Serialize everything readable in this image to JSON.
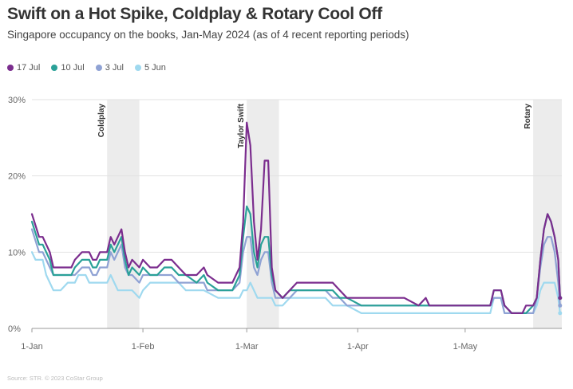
{
  "title": "Swift on a Hot Spike, Coldplay & Rotary Cool Off",
  "subtitle": "Singapore occupancy on the books, Jan-May 2024 (as of 4 recent reporting periods)",
  "source": "Source: STR. © 2023 CoStar Group",
  "chart_data": {
    "type": "line",
    "title": "Swift on a Hot Spike, Coldplay & Rotary Cool Off",
    "xlabel": "",
    "ylabel": "",
    "x_unit": "day of year 2024 (0 = 1-Jan)",
    "xlim": [
      0,
      148
    ],
    "ylim": [
      0,
      30
    ],
    "grid": "horizontal",
    "legend_position": "top-left",
    "y_ticks": [
      {
        "value": 0,
        "label": "0%"
      },
      {
        "value": 10,
        "label": "10%"
      },
      {
        "value": 20,
        "label": "20%"
      },
      {
        "value": 30,
        "label": "30%"
      }
    ],
    "x_ticks": [
      {
        "value": 0,
        "label": "1-Jan"
      },
      {
        "value": 31,
        "label": "1-Feb"
      },
      {
        "value": 60,
        "label": "1-Mar"
      },
      {
        "value": 91,
        "label": "1-Apr"
      },
      {
        "value": 121,
        "label": "1-May"
      }
    ],
    "events": [
      {
        "label": "Coldplay",
        "start": 21,
        "end": 30
      },
      {
        "label": "Taylor Swift",
        "start": 60,
        "end": 69
      },
      {
        "label": "Rotary",
        "start": 140,
        "end": 148
      }
    ],
    "series": [
      {
        "name": "17 Jul",
        "color": "#7b2d8e",
        "points": [
          [
            0,
            15
          ],
          [
            2,
            12
          ],
          [
            3,
            12
          ],
          [
            5,
            10
          ],
          [
            6,
            8
          ],
          [
            8,
            8
          ],
          [
            11,
            8
          ],
          [
            12,
            9
          ],
          [
            14,
            10
          ],
          [
            16,
            10
          ],
          [
            17,
            9
          ],
          [
            18,
            9
          ],
          [
            19,
            10
          ],
          [
            21,
            10
          ],
          [
            22,
            12
          ],
          [
            23,
            11
          ],
          [
            24,
            12
          ],
          [
            25,
            13
          ],
          [
            26,
            10
          ],
          [
            27,
            8
          ],
          [
            28,
            9
          ],
          [
            30,
            8
          ],
          [
            31,
            9
          ],
          [
            33,
            8
          ],
          [
            35,
            8
          ],
          [
            37,
            9
          ],
          [
            39,
            9
          ],
          [
            41,
            8
          ],
          [
            43,
            7
          ],
          [
            46,
            7
          ],
          [
            48,
            8
          ],
          [
            49,
            7
          ],
          [
            52,
            6
          ],
          [
            56,
            6
          ],
          [
            58,
            8
          ],
          [
            59,
            14
          ],
          [
            60,
            27
          ],
          [
            61,
            24
          ],
          [
            62,
            14
          ],
          [
            63,
            9
          ],
          [
            64,
            13
          ],
          [
            65,
            22
          ],
          [
            66,
            22
          ],
          [
            67,
            8
          ],
          [
            68,
            5
          ],
          [
            70,
            4
          ],
          [
            72,
            5
          ],
          [
            74,
            6
          ],
          [
            76,
            6
          ],
          [
            80,
            6
          ],
          [
            82,
            6
          ],
          [
            84,
            6
          ],
          [
            86,
            5
          ],
          [
            88,
            4
          ],
          [
            92,
            4
          ],
          [
            97,
            4
          ],
          [
            104,
            4
          ],
          [
            108,
            3
          ],
          [
            110,
            4
          ],
          [
            111,
            3
          ],
          [
            118,
            3
          ],
          [
            125,
            3
          ],
          [
            128,
            3
          ],
          [
            129,
            5
          ],
          [
            131,
            5
          ],
          [
            132,
            3
          ],
          [
            134,
            2
          ],
          [
            137,
            2
          ],
          [
            138,
            3
          ],
          [
            140,
            3
          ],
          [
            141,
            4
          ],
          [
            142,
            9
          ],
          [
            143,
            13
          ],
          [
            144,
            15
          ],
          [
            145,
            14
          ],
          [
            146,
            12
          ],
          [
            147,
            9
          ],
          [
            147.5,
            4
          ]
        ]
      },
      {
        "name": "10 Jul",
        "color": "#2aa198",
        "points": [
          [
            0,
            14
          ],
          [
            2,
            11
          ],
          [
            3,
            11
          ],
          [
            5,
            9
          ],
          [
            6,
            7
          ],
          [
            8,
            7
          ],
          [
            11,
            7
          ],
          [
            12,
            8
          ],
          [
            14,
            9
          ],
          [
            16,
            9
          ],
          [
            17,
            8
          ],
          [
            18,
            8
          ],
          [
            19,
            9
          ],
          [
            21,
            9
          ],
          [
            22,
            11
          ],
          [
            23,
            10
          ],
          [
            24,
            11
          ],
          [
            25,
            12
          ],
          [
            26,
            9
          ],
          [
            27,
            7
          ],
          [
            28,
            8
          ],
          [
            30,
            7
          ],
          [
            31,
            8
          ],
          [
            33,
            7
          ],
          [
            35,
            7
          ],
          [
            37,
            8
          ],
          [
            39,
            8
          ],
          [
            41,
            7
          ],
          [
            43,
            7
          ],
          [
            46,
            6
          ],
          [
            48,
            7
          ],
          [
            49,
            6
          ],
          [
            52,
            5
          ],
          [
            56,
            5
          ],
          [
            58,
            7
          ],
          [
            59,
            12
          ],
          [
            60,
            16
          ],
          [
            61,
            15
          ],
          [
            62,
            10
          ],
          [
            63,
            8
          ],
          [
            64,
            11
          ],
          [
            65,
            12
          ],
          [
            66,
            12
          ],
          [
            67,
            7
          ],
          [
            68,
            5
          ],
          [
            70,
            4
          ],
          [
            72,
            5
          ],
          [
            74,
            5
          ],
          [
            76,
            5
          ],
          [
            80,
            5
          ],
          [
            82,
            5
          ],
          [
            84,
            5
          ],
          [
            86,
            4
          ],
          [
            88,
            4
          ],
          [
            92,
            3
          ],
          [
            97,
            3
          ],
          [
            104,
            3
          ],
          [
            108,
            3
          ],
          [
            110,
            3
          ],
          [
            118,
            3
          ],
          [
            125,
            3
          ],
          [
            128,
            3
          ],
          [
            129,
            5
          ],
          [
            131,
            5
          ],
          [
            132,
            3
          ],
          [
            134,
            2
          ],
          [
            137,
            2
          ],
          [
            138,
            2
          ],
          [
            140,
            3
          ],
          [
            141,
            4
          ],
          [
            142,
            9
          ],
          [
            143,
            13
          ],
          [
            144,
            15
          ],
          [
            145,
            14
          ],
          [
            146,
            12
          ],
          [
            147,
            9
          ],
          [
            147.5,
            4
          ]
        ]
      },
      {
        "name": "3 Jul",
        "color": "#8fa2d4",
        "points": [
          [
            0,
            13
          ],
          [
            2,
            10
          ],
          [
            3,
            10
          ],
          [
            5,
            8
          ],
          [
            6,
            7
          ],
          [
            8,
            7
          ],
          [
            11,
            7
          ],
          [
            12,
            7
          ],
          [
            14,
            8
          ],
          [
            16,
            8
          ],
          [
            17,
            7
          ],
          [
            18,
            7
          ],
          [
            19,
            8
          ],
          [
            21,
            8
          ],
          [
            22,
            10
          ],
          [
            23,
            9
          ],
          [
            24,
            10
          ],
          [
            25,
            11
          ],
          [
            26,
            8
          ],
          [
            27,
            7
          ],
          [
            28,
            7
          ],
          [
            30,
            6
          ],
          [
            31,
            7
          ],
          [
            33,
            7
          ],
          [
            35,
            7
          ],
          [
            37,
            7
          ],
          [
            39,
            7
          ],
          [
            41,
            6
          ],
          [
            43,
            6
          ],
          [
            46,
            6
          ],
          [
            48,
            6
          ],
          [
            49,
            5
          ],
          [
            52,
            5
          ],
          [
            56,
            5
          ],
          [
            58,
            6
          ],
          [
            59,
            10
          ],
          [
            60,
            12
          ],
          [
            61,
            12
          ],
          [
            62,
            8
          ],
          [
            63,
            7
          ],
          [
            64,
            9
          ],
          [
            65,
            10
          ],
          [
            66,
            10
          ],
          [
            67,
            6
          ],
          [
            68,
            4
          ],
          [
            70,
            4
          ],
          [
            72,
            4
          ],
          [
            74,
            5
          ],
          [
            76,
            5
          ],
          [
            80,
            5
          ],
          [
            82,
            5
          ],
          [
            84,
            4
          ],
          [
            86,
            4
          ],
          [
            88,
            3
          ],
          [
            92,
            3
          ],
          [
            97,
            3
          ],
          [
            104,
            3
          ],
          [
            108,
            3
          ],
          [
            110,
            3
          ],
          [
            118,
            3
          ],
          [
            125,
            3
          ],
          [
            128,
            3
          ],
          [
            129,
            4
          ],
          [
            131,
            4
          ],
          [
            132,
            2
          ],
          [
            134,
            2
          ],
          [
            137,
            2
          ],
          [
            138,
            2
          ],
          [
            140,
            2
          ],
          [
            141,
            4
          ],
          [
            142,
            8
          ],
          [
            143,
            11
          ],
          [
            144,
            12
          ],
          [
            145,
            12
          ],
          [
            146,
            10
          ],
          [
            147,
            6
          ],
          [
            147.5,
            3
          ]
        ]
      },
      {
        "name": "5 Jun",
        "color": "#9fd9ef",
        "points": [
          [
            0,
            10
          ],
          [
            1,
            9
          ],
          [
            2,
            9
          ],
          [
            3,
            9
          ],
          [
            4,
            7
          ],
          [
            6,
            5
          ],
          [
            8,
            5
          ],
          [
            10,
            6
          ],
          [
            12,
            6
          ],
          [
            13,
            7
          ],
          [
            15,
            7
          ],
          [
            16,
            6
          ],
          [
            17,
            6
          ],
          [
            19,
            6
          ],
          [
            21,
            6
          ],
          [
            22,
            7
          ],
          [
            23,
            6
          ],
          [
            24,
            5
          ],
          [
            26,
            5
          ],
          [
            28,
            5
          ],
          [
            30,
            4
          ],
          [
            31,
            5
          ],
          [
            33,
            6
          ],
          [
            35,
            6
          ],
          [
            37,
            6
          ],
          [
            39,
            6
          ],
          [
            41,
            6
          ],
          [
            43,
            5
          ],
          [
            46,
            5
          ],
          [
            48,
            5
          ],
          [
            52,
            4
          ],
          [
            56,
            4
          ],
          [
            58,
            4
          ],
          [
            59,
            5
          ],
          [
            60,
            5
          ],
          [
            61,
            6
          ],
          [
            62,
            5
          ],
          [
            63,
            4
          ],
          [
            64,
            4
          ],
          [
            65,
            4
          ],
          [
            66,
            4
          ],
          [
            67,
            4
          ],
          [
            68,
            3
          ],
          [
            70,
            3
          ],
          [
            72,
            4
          ],
          [
            76,
            4
          ],
          [
            80,
            4
          ],
          [
            82,
            4
          ],
          [
            84,
            3
          ],
          [
            86,
            3
          ],
          [
            88,
            3
          ],
          [
            92,
            2
          ],
          [
            97,
            2
          ],
          [
            104,
            2
          ],
          [
            108,
            2
          ],
          [
            110,
            2
          ],
          [
            118,
            2
          ],
          [
            125,
            2
          ],
          [
            128,
            2
          ],
          [
            129,
            4
          ],
          [
            131,
            4
          ],
          [
            132,
            2
          ],
          [
            134,
            2
          ],
          [
            137,
            2
          ],
          [
            138,
            2
          ],
          [
            140,
            2
          ],
          [
            141,
            3
          ],
          [
            142,
            5
          ],
          [
            143,
            6
          ],
          [
            144,
            6
          ],
          [
            145,
            6
          ],
          [
            146,
            6
          ],
          [
            147,
            4
          ],
          [
            147.5,
            2
          ]
        ]
      }
    ]
  }
}
